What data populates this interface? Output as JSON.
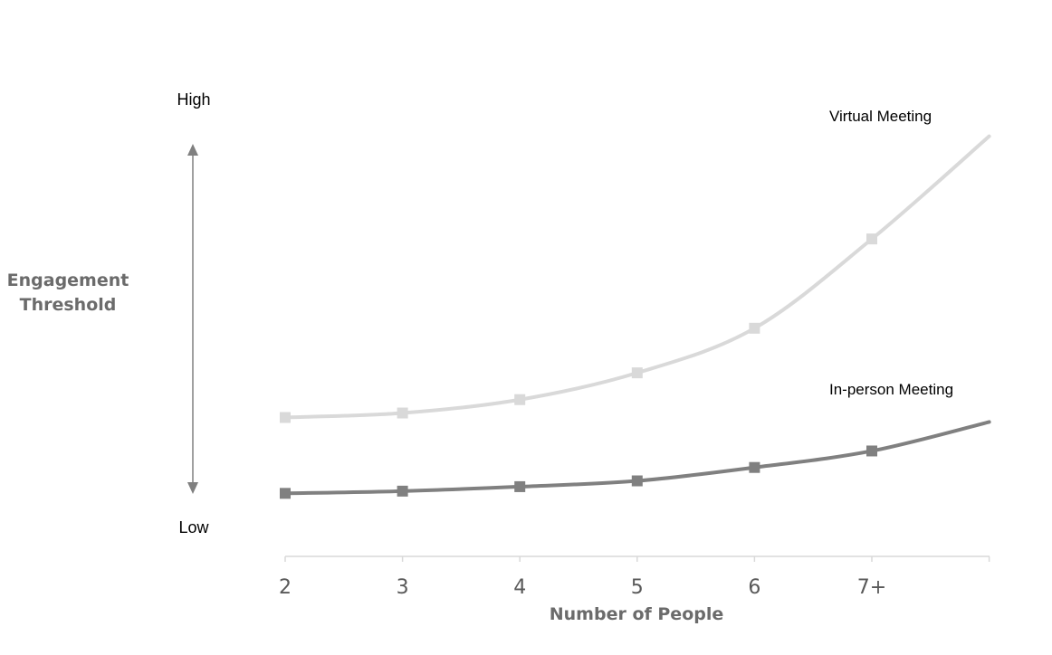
{
  "chart_data": {
    "type": "line",
    "categories": [
      "2",
      "3",
      "4",
      "5",
      "6",
      "7+",
      ""
    ],
    "series": [
      {
        "name": "Virtual Meeting",
        "color": "#d9d9d9",
        "values": [
          2.2,
          2.3,
          2.6,
          3.2,
          4.2,
          6.2,
          8.5
        ],
        "markers": [
          true,
          true,
          true,
          true,
          true,
          true,
          false
        ]
      },
      {
        "name": "In-person Meeting",
        "color": "#808080",
        "values": [
          0.5,
          0.55,
          0.65,
          0.78,
          1.08,
          1.45,
          2.1
        ],
        "markers": [
          true,
          true,
          true,
          true,
          true,
          true,
          false
        ]
      }
    ],
    "ylabel_line1": "Engagement",
    "ylabel_line2": "Threshold",
    "xlabel": "Number of People",
    "y_high_label": "High",
    "y_low_label": "Low",
    "ylim": [
      0,
      9
    ],
    "grid": false,
    "axis_color": "#d9d9d9",
    "arrow_color": "#808080"
  }
}
